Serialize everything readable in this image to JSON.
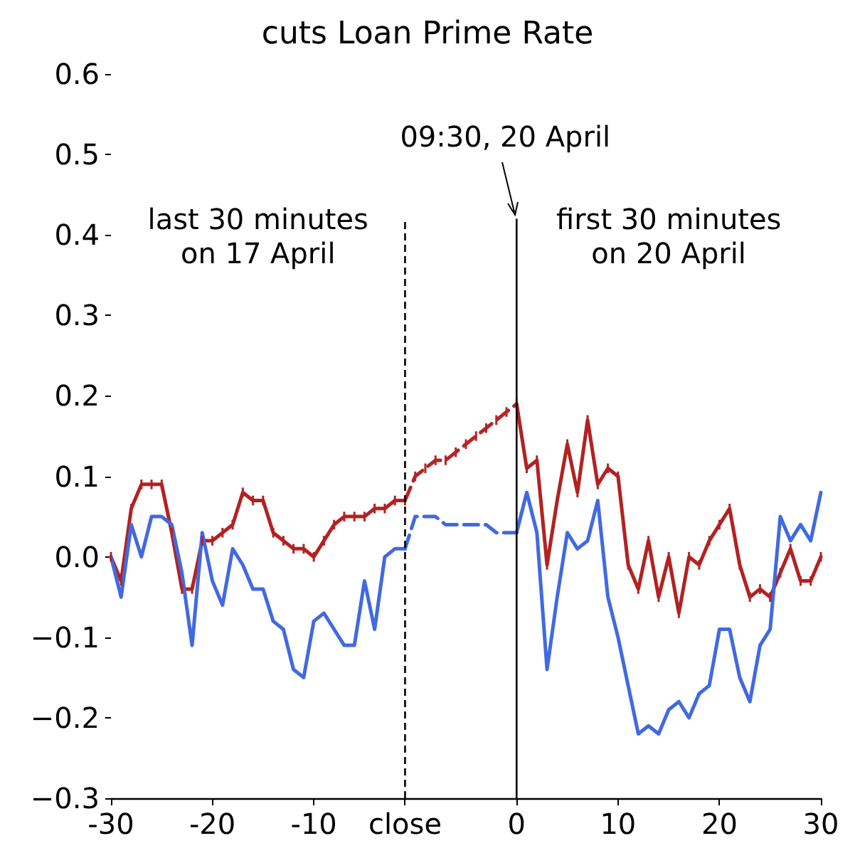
{
  "chart_data": {
    "type": "line",
    "title": "cuts Loan Prime Rate",
    "categories": [
      "-30",
      null,
      null,
      null,
      null,
      null,
      null,
      null,
      null,
      null,
      "-20",
      null,
      null,
      null,
      null,
      null,
      null,
      null,
      null,
      null,
      "-10",
      null,
      null,
      null,
      null,
      null,
      null,
      null,
      null,
      "close",
      null,
      null,
      null,
      null,
      null,
      null,
      null,
      null,
      null,
      null,
      "0",
      null,
      null,
      null,
      null,
      null,
      null,
      null,
      null,
      null,
      "10",
      null,
      null,
      null,
      null,
      null,
      null,
      null,
      null,
      null,
      "20",
      null,
      null,
      null,
      null,
      null,
      null,
      null,
      null,
      null,
      "30"
    ],
    "series": [
      {
        "color": "#b22222",
        "line_style": "solid",
        "values": [
          0.0,
          -0.03,
          0.06,
          0.09,
          0.09,
          0.09,
          0.03,
          -0.04,
          -0.04,
          0.02,
          0.02,
          0.03,
          0.04,
          0.08,
          0.07,
          0.07,
          0.03,
          0.02,
          0.01,
          0.01,
          0.0,
          0.02,
          0.04,
          0.05,
          0.05,
          0.05,
          0.06,
          0.06,
          0.07,
          0.07,
          null,
          null,
          null,
          null,
          null,
          null,
          null,
          null,
          null,
          null,
          0.19,
          0.11,
          0.12,
          -0.01,
          0.07,
          0.14,
          0.08,
          0.17,
          0.09,
          0.11,
          0.1,
          -0.01,
          -0.04,
          0.02,
          -0.05,
          0.0,
          -0.07,
          0.0,
          -0.01,
          0.02,
          0.04,
          0.06,
          -0.01,
          -0.05,
          -0.04,
          -0.05,
          -0.02,
          0.01,
          -0.03,
          -0.03,
          0.0
        ],
        "errors": [
          0.006,
          0.006,
          0.006,
          0.006,
          0.006,
          0.006,
          0.006,
          0.006,
          0.006,
          0.006,
          0.006,
          0.006,
          0.006,
          0.006,
          0.006,
          0.006,
          0.006,
          0.006,
          0.006,
          0.006,
          0.006,
          0.006,
          0.006,
          0.006,
          0.006,
          0.006,
          0.006,
          0.006,
          0.006,
          0.006,
          null,
          null,
          null,
          null,
          null,
          null,
          null,
          null,
          null,
          null,
          0.006,
          0.006,
          0.006,
          0.006,
          0.006,
          0.006,
          0.006,
          0.006,
          0.006,
          0.006,
          0.006,
          0.006,
          0.006,
          0.006,
          0.006,
          0.006,
          0.006,
          0.006,
          0.006,
          0.006,
          0.006,
          0.006,
          0.006,
          0.006,
          0.006,
          0.006,
          0.006,
          0.006,
          0.006,
          0.006,
          0.006
        ]
      },
      {
        "color": "#b42626",
        "line_style": "dashed",
        "values": [
          null,
          null,
          null,
          null,
          null,
          null,
          null,
          null,
          null,
          null,
          null,
          null,
          null,
          null,
          null,
          null,
          null,
          null,
          null,
          null,
          null,
          null,
          null,
          null,
          null,
          null,
          null,
          null,
          null,
          0.07,
          0.1,
          0.11,
          0.12,
          0.12,
          0.13,
          0.14,
          0.15,
          0.16,
          0.17,
          0.18,
          0.19,
          null,
          null,
          null,
          null,
          null,
          null,
          null,
          null,
          null,
          null,
          null,
          null,
          null,
          null,
          null,
          null,
          null,
          null,
          null,
          null,
          null,
          null,
          null,
          null,
          null,
          null,
          null,
          null,
          null,
          null
        ],
        "errors": [
          null,
          null,
          null,
          null,
          null,
          null,
          null,
          null,
          null,
          null,
          null,
          null,
          null,
          null,
          null,
          null,
          null,
          null,
          null,
          null,
          null,
          null,
          null,
          null,
          null,
          null,
          null,
          null,
          null,
          null,
          0.006,
          0.006,
          0.006,
          0.006,
          0.006,
          0.006,
          0.006,
          0.006,
          0.006,
          0.006,
          null,
          null,
          null,
          null,
          null,
          null,
          null,
          null,
          null,
          null,
          null,
          null,
          null,
          null,
          null,
          null,
          null,
          null,
          null,
          null,
          null,
          null,
          null,
          null,
          null,
          null,
          null,
          null,
          null,
          null,
          null
        ]
      },
      {
        "color": "#4169e1",
        "line_style": "solid",
        "values": [
          0.0,
          -0.05,
          0.04,
          0.0,
          0.05,
          0.05,
          0.04,
          -0.02,
          -0.11,
          0.03,
          -0.03,
          -0.06,
          0.01,
          -0.01,
          -0.04,
          -0.04,
          -0.08,
          -0.09,
          -0.14,
          -0.15,
          -0.08,
          -0.07,
          -0.09,
          -0.11,
          -0.11,
          -0.03,
          -0.09,
          0.0,
          0.01,
          0.01,
          null,
          null,
          null,
          null,
          null,
          null,
          null,
          null,
          null,
          null,
          0.03,
          0.08,
          0.03,
          -0.14,
          -0.05,
          0.03,
          0.01,
          0.02,
          0.07,
          -0.05,
          -0.1,
          -0.16,
          -0.22,
          -0.21,
          -0.22,
          -0.19,
          -0.18,
          -0.2,
          -0.17,
          -0.16,
          -0.09,
          -0.09,
          -0.15,
          -0.18,
          -0.11,
          -0.09,
          0.05,
          0.02,
          0.04,
          0.02,
          0.08
        ]
      },
      {
        "color": "#4169e1",
        "line_style": "dashed",
        "values": [
          null,
          null,
          null,
          null,
          null,
          null,
          null,
          null,
          null,
          null,
          null,
          null,
          null,
          null,
          null,
          null,
          null,
          null,
          null,
          null,
          null,
          null,
          null,
          null,
          null,
          null,
          null,
          null,
          null,
          0.01,
          0.05,
          0.05,
          0.05,
          0.04,
          0.04,
          0.04,
          0.04,
          0.04,
          0.03,
          0.03,
          0.03,
          null,
          null,
          null,
          null,
          null,
          null,
          null,
          null,
          null,
          null,
          null,
          null,
          null,
          null,
          null,
          null,
          null,
          null,
          null,
          null,
          null,
          null,
          null,
          null,
          null,
          null,
          null,
          null,
          null,
          null
        ]
      }
    ],
    "ylim": [
      -0.3,
      0.6
    ],
    "yticks": [
      {
        "value": -0.3,
        "label": "−0.3"
      },
      {
        "value": -0.2,
        "label": "−0.2"
      },
      {
        "value": -0.1,
        "label": "−0.1"
      },
      {
        "value": 0,
        "label": "0.0"
      },
      0.1,
      0.2,
      0.3,
      0.4,
      0.5,
      0.6
    ],
    "ref_lines": [
      {
        "axis": "x",
        "value": "close",
        "color": "#000000",
        "line_style": "dashed"
      },
      {
        "axis": "x",
        "value": "0",
        "color": "#000000",
        "line_style": "solid"
      }
    ],
    "annotations": [
      {
        "text": "09:30, 20 April",
        "x": "0"
      },
      "last 30 minutes\non 17 April",
      "first 30 minutes\non 20 April"
    ],
    "grid": false
  }
}
